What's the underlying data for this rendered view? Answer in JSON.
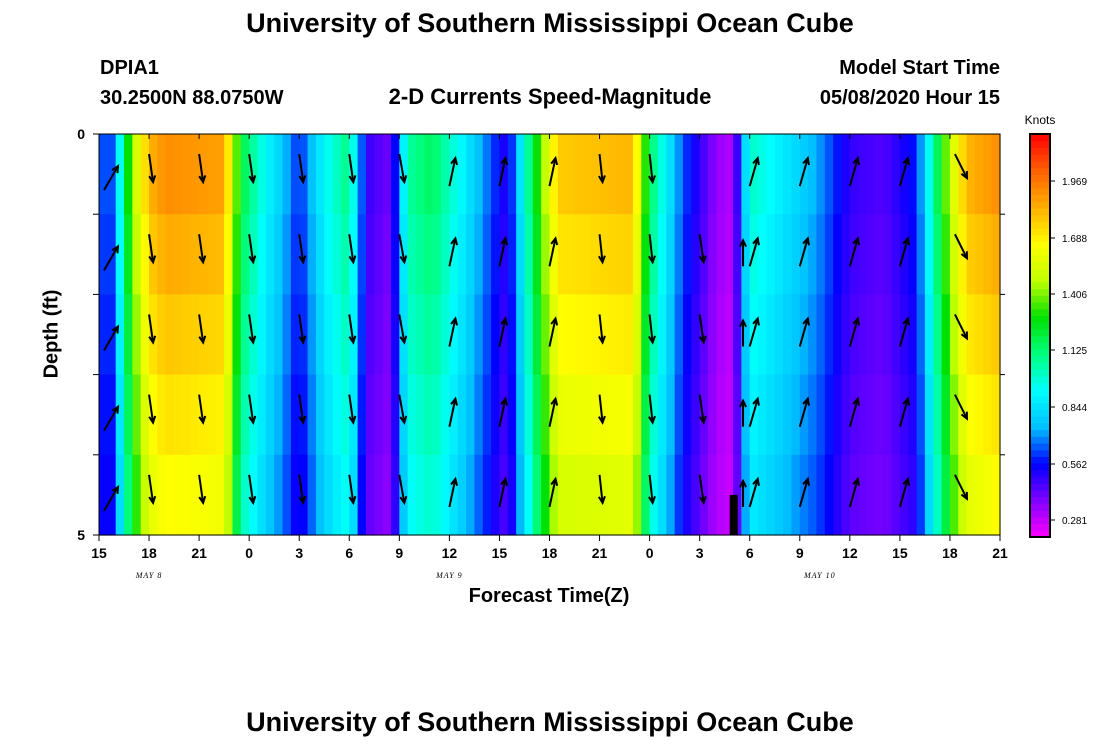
{
  "header": {
    "title": "University of Southern Mississippi Ocean Cube",
    "station_id": "DPIA1",
    "location": "30.2500N 88.0750W",
    "chart_title": "2-D Currents Speed-Magnitude",
    "model_start_label": "Model Start Time",
    "model_start_value": "05/08/2020 Hour 15",
    "footer_title": "University of Southern Mississippi Ocean Cube"
  },
  "chart_data": {
    "type": "heatmap",
    "title": "2-D Currents Speed-Magnitude",
    "xlabel": "Forecast Time(Z)",
    "ylabel": "Depth (ft)",
    "x_tick_labels": [
      "15",
      "18",
      "21",
      "0",
      "3",
      "6",
      "9",
      "12",
      "15",
      "18",
      "21",
      "0",
      "3",
      "6",
      "9",
      "12",
      "15",
      "18",
      "21"
    ],
    "x_day_labels": [
      {
        "label": "MAY 8",
        "at_tick": 1
      },
      {
        "label": "MAY 9",
        "at_tick": 7
      },
      {
        "label": "MAY 10",
        "at_tick": 14.4
      }
    ],
    "y_tick_labels": [
      {
        "label": "0",
        "value": 0
      },
      {
        "label": "5",
        "value": 5
      }
    ],
    "ylim": [
      0,
      5
    ],
    "y_minor_ticks": [
      1,
      2,
      3,
      4
    ],
    "x_range_hours": [
      0,
      54
    ],
    "colorbar": {
      "title": "Knots",
      "ticks": [
        "1.969",
        "1.688",
        "1.406",
        "1.125",
        "0.844",
        "0.562",
        "0.281"
      ],
      "range": [
        0.14,
        2.25
      ]
    },
    "speed_profile_knots": [
      {
        "hour": 0,
        "speed": 0.6
      },
      {
        "hour": 1,
        "speed": 0.6
      },
      {
        "hour": 1.3,
        "speed": 1.0
      },
      {
        "hour": 2,
        "speed": 1.45
      },
      {
        "hour": 3,
        "speed": 1.85
      },
      {
        "hour": 4,
        "speed": 1.95
      },
      {
        "hour": 7.5,
        "speed": 1.9
      },
      {
        "hour": 8.5,
        "speed": 1.2
      },
      {
        "hour": 10,
        "speed": 0.9
      },
      {
        "hour": 11,
        "speed": 0.75
      },
      {
        "hour": 12,
        "speed": 0.55
      },
      {
        "hour": 13.5,
        "speed": 0.9
      },
      {
        "hour": 15,
        "speed": 1.1
      },
      {
        "hour": 16,
        "speed": 0.45
      },
      {
        "hour": 17.5,
        "speed": 0.35
      },
      {
        "hour": 18.5,
        "speed": 1.05
      },
      {
        "hour": 20,
        "speed": 1.15
      },
      {
        "hour": 22,
        "speed": 0.85
      },
      {
        "hour": 23.5,
        "speed": 0.6
      },
      {
        "hour": 24.5,
        "speed": 0.45
      },
      {
        "hour": 26,
        "speed": 1.2
      },
      {
        "hour": 27.5,
        "speed": 1.8
      },
      {
        "hour": 32,
        "speed": 1.85
      },
      {
        "hour": 33,
        "speed": 1.15
      },
      {
        "hour": 35,
        "speed": 0.6
      },
      {
        "hour": 37,
        "speed": 0.3
      },
      {
        "hour": 38,
        "speed": 0.25
      },
      {
        "hour": 39,
        "speed": 1.0
      },
      {
        "hour": 41,
        "speed": 0.85
      },
      {
        "hour": 43,
        "speed": 0.7
      },
      {
        "hour": 45,
        "speed": 0.45
      },
      {
        "hour": 47,
        "speed": 0.4
      },
      {
        "hour": 49,
        "speed": 0.55
      },
      {
        "hour": 50,
        "speed": 1.05
      },
      {
        "hour": 51,
        "speed": 1.5
      },
      {
        "hour": 52,
        "speed": 1.85
      },
      {
        "hour": 54,
        "speed": 1.95
      }
    ],
    "colors": {
      "scale": [
        "#ff00ff",
        "#8000ff",
        "#0000ff",
        "#00bfff",
        "#00ffff",
        "#00ff80",
        "#00e000",
        "#c0ff00",
        "#ffff00",
        "#ffb000",
        "#ff6000",
        "#ff0000"
      ],
      "arrow": "#000000",
      "missing_bar": "#000000"
    }
  }
}
